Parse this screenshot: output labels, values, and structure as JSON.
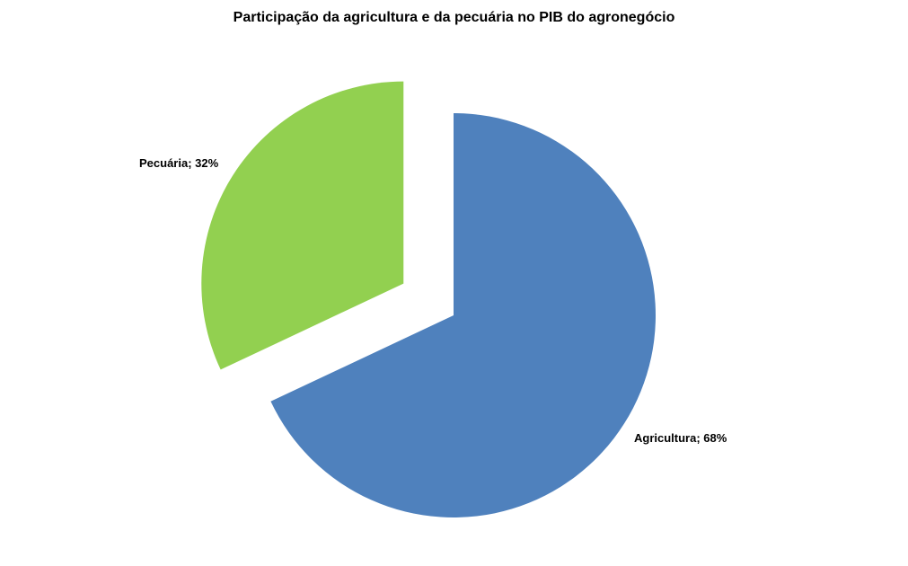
{
  "chart_data": {
    "type": "pie",
    "title": "Participação da agricultura e da pecuária no PIB do agronegócio",
    "slices": [
      {
        "name": "Agricultura",
        "value": 68,
        "label": "Agricultura; 68%",
        "color": "#4F81BD",
        "exploded": false
      },
      {
        "name": "Pecuária",
        "value": 32,
        "label": "Pecuária; 32%",
        "color": "#92D050",
        "exploded": true
      }
    ],
    "start_angle_deg": 0,
    "direction": "clockwise",
    "legend": "none"
  }
}
